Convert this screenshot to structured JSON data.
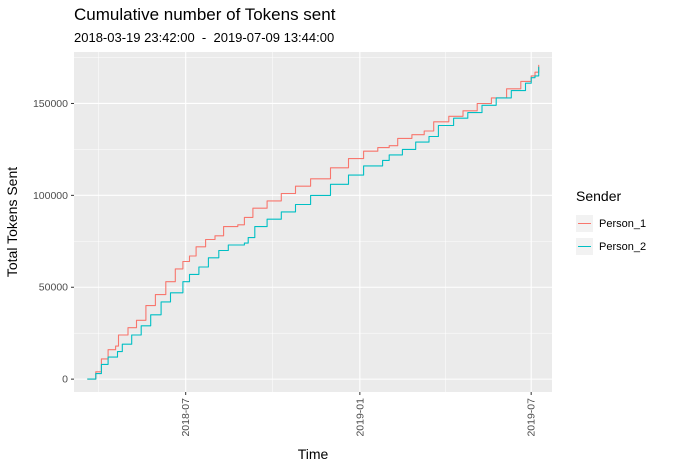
{
  "chart_data": {
    "type": "line",
    "title": "Cumulative number of Tokens sent",
    "subtitle": "2018-03-19 23:42:00  -  2019-07-09 13:44:00",
    "xlabel": "Time",
    "ylabel": "Total Tokens Sent",
    "x_ticks": [
      "2018-07",
      "2019-01",
      "2019-07"
    ],
    "y_ticks": [
      "0",
      "50000",
      "100000",
      "150000"
    ],
    "ylim": [
      -7000,
      178000
    ],
    "xlim": [
      "2018-03-05",
      "2019-07-23"
    ],
    "grid": true,
    "legend": {
      "title": "Sender",
      "placement": "right"
    },
    "series": [
      {
        "name": "Person_1",
        "color": "#F8766D",
        "points": [
          [
            "2018-03-19",
            0
          ],
          [
            "2018-03-28",
            4000
          ],
          [
            "2018-04-03",
            11000
          ],
          [
            "2018-04-10",
            16000
          ],
          [
            "2018-04-18",
            18000
          ],
          [
            "2018-04-21",
            24000
          ],
          [
            "2018-05-01",
            28000
          ],
          [
            "2018-05-10",
            32000
          ],
          [
            "2018-05-20",
            40000
          ],
          [
            "2018-05-30",
            46000
          ],
          [
            "2018-06-10",
            53000
          ],
          [
            "2018-06-20",
            60000
          ],
          [
            "2018-06-28",
            64000
          ],
          [
            "2018-07-05",
            67000
          ],
          [
            "2018-07-12",
            72000
          ],
          [
            "2018-07-22",
            76000
          ],
          [
            "2018-08-01",
            78000
          ],
          [
            "2018-08-10",
            83000
          ],
          [
            "2018-08-25",
            84000
          ],
          [
            "2018-09-01",
            88000
          ],
          [
            "2018-09-10",
            93000
          ],
          [
            "2018-09-25",
            97000
          ],
          [
            "2018-10-10",
            101000
          ],
          [
            "2018-10-25",
            105000
          ],
          [
            "2018-11-10",
            109000
          ],
          [
            "2018-12-01",
            115000
          ],
          [
            "2018-12-20",
            120000
          ],
          [
            "2019-01-05",
            124000
          ],
          [
            "2019-01-20",
            126000
          ],
          [
            "2019-02-01",
            127000
          ],
          [
            "2019-02-10",
            131000
          ],
          [
            "2019-02-25",
            133000
          ],
          [
            "2019-03-10",
            135000
          ],
          [
            "2019-03-20",
            140000
          ],
          [
            "2019-04-05",
            143000
          ],
          [
            "2019-04-20",
            146000
          ],
          [
            "2019-05-05",
            150000
          ],
          [
            "2019-05-20",
            153000
          ],
          [
            "2019-06-05",
            158000
          ],
          [
            "2019-06-20",
            162000
          ],
          [
            "2019-07-01",
            165000
          ],
          [
            "2019-07-05",
            167000
          ],
          [
            "2019-07-09",
            171000
          ]
        ]
      },
      {
        "name": "Person_2",
        "color": "#00BFC4",
        "points": [
          [
            "2018-03-19",
            0
          ],
          [
            "2018-03-28",
            3000
          ],
          [
            "2018-04-03",
            8000
          ],
          [
            "2018-04-10",
            12000
          ],
          [
            "2018-04-20",
            15000
          ],
          [
            "2018-04-25",
            19000
          ],
          [
            "2018-05-05",
            24000
          ],
          [
            "2018-05-15",
            29000
          ],
          [
            "2018-05-25",
            35000
          ],
          [
            "2018-06-05",
            42000
          ],
          [
            "2018-06-15",
            47000
          ],
          [
            "2018-06-28",
            53000
          ],
          [
            "2018-07-05",
            57000
          ],
          [
            "2018-07-15",
            61000
          ],
          [
            "2018-07-25",
            66000
          ],
          [
            "2018-08-05",
            70000
          ],
          [
            "2018-08-15",
            73000
          ],
          [
            "2018-09-01",
            74000
          ],
          [
            "2018-09-05",
            77000
          ],
          [
            "2018-09-12",
            83000
          ],
          [
            "2018-09-25",
            87000
          ],
          [
            "2018-10-10",
            91000
          ],
          [
            "2018-10-25",
            95000
          ],
          [
            "2018-11-10",
            100000
          ],
          [
            "2018-12-01",
            106000
          ],
          [
            "2018-12-20",
            111000
          ],
          [
            "2019-01-05",
            116000
          ],
          [
            "2019-01-25",
            119000
          ],
          [
            "2019-02-01",
            122000
          ],
          [
            "2019-02-15",
            125000
          ],
          [
            "2019-03-01",
            129000
          ],
          [
            "2019-03-15",
            132000
          ],
          [
            "2019-03-25",
            138000
          ],
          [
            "2019-04-10",
            142000
          ],
          [
            "2019-04-25",
            145000
          ],
          [
            "2019-05-10",
            149000
          ],
          [
            "2019-05-25",
            153000
          ],
          [
            "2019-06-10",
            157000
          ],
          [
            "2019-06-25",
            161000
          ],
          [
            "2019-07-01",
            164000
          ],
          [
            "2019-07-05",
            165000
          ],
          [
            "2019-07-09",
            170000
          ]
        ]
      }
    ]
  }
}
